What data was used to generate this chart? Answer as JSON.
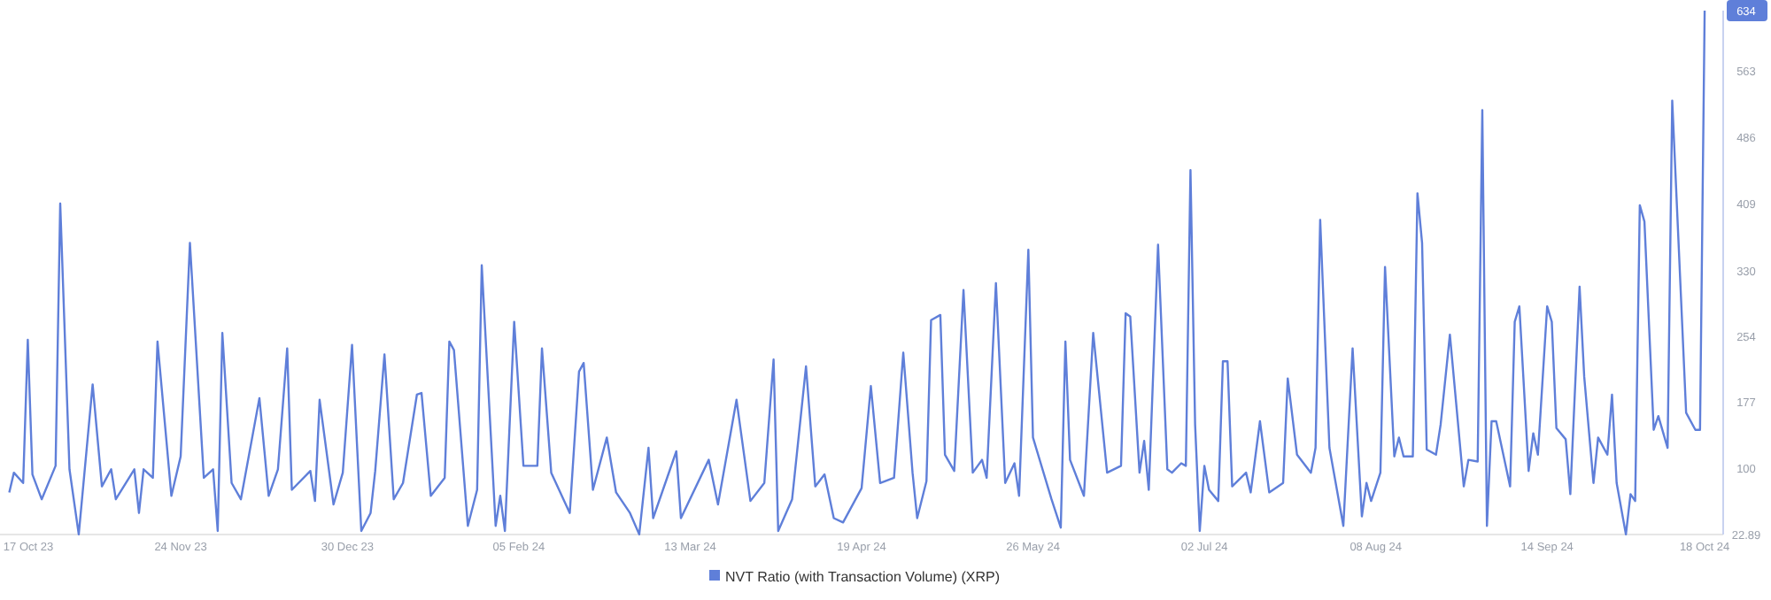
{
  "chart_data": {
    "type": "line",
    "legend": "bottom",
    "grid": false,
    "marker": "none",
    "line_style": "solid",
    "xlim": [
      "2023-10-16",
      "2024-10-22"
    ],
    "xticks": [
      {
        "value": "2023-10-17",
        "label": "17 Oct 23"
      },
      {
        "value": "2023-11-24",
        "label": "24 Nov 23"
      },
      {
        "value": "2023-12-30",
        "label": "30 Dec 23"
      },
      {
        "value": "2024-02-05",
        "label": "05 Feb 24"
      },
      {
        "value": "2024-03-13",
        "label": "13 Mar 24"
      },
      {
        "value": "2024-04-19",
        "label": "19 Apr 24"
      },
      {
        "value": "2024-05-26",
        "label": "26 May 24"
      },
      {
        "value": "2024-07-02",
        "label": "02 Jul 24"
      },
      {
        "value": "2024-08-08",
        "label": "08 Aug 24"
      },
      {
        "value": "2024-09-14",
        "label": "14 Sep 24"
      },
      {
        "value": "2024-10-18",
        "label": "18 Oct 24"
      }
    ],
    "ylim": [
      22.89,
      634
    ],
    "yticks": [
      22.89,
      100,
      177,
      254,
      330,
      409,
      486,
      563,
      634
    ],
    "series": [
      {
        "name": "NVT Ratio (with Transaction Volume) (XRP)",
        "color": "#5f7fd9",
        "x": [
          "2023-10-18",
          "2023-10-19",
          "2023-10-21",
          "2023-10-22",
          "2023-10-23",
          "2023-10-25",
          "2023-10-28",
          "2023-10-29",
          "2023-10-31",
          "2023-11-02",
          "2023-11-05",
          "2023-11-07",
          "2023-11-09",
          "2023-11-10",
          "2023-11-14",
          "2023-11-15",
          "2023-11-16",
          "2023-11-18",
          "2023-11-19",
          "2023-11-22",
          "2023-11-24",
          "2023-11-26",
          "2023-11-29",
          "2023-12-01",
          "2023-12-02",
          "2023-12-03",
          "2023-12-05",
          "2023-12-07",
          "2023-12-11",
          "2023-12-13",
          "2023-12-15",
          "2023-12-17",
          "2023-12-18",
          "2023-12-22",
          "2023-12-23",
          "2023-12-24",
          "2023-12-27",
          "2023-12-29",
          "2023-12-31",
          "2024-01-02",
          "2024-01-04",
          "2024-01-05",
          "2024-01-07",
          "2024-01-09",
          "2024-01-11",
          "2024-01-14",
          "2024-01-15",
          "2024-01-17",
          "2024-01-20",
          "2024-01-21",
          "2024-01-22",
          "2024-01-25",
          "2024-01-27",
          "2024-01-28",
          "2024-01-31",
          "2024-02-01",
          "2024-02-02",
          "2024-02-04",
          "2024-02-06",
          "2024-02-09",
          "2024-02-10",
          "2024-02-12",
          "2024-02-16",
          "2024-02-18",
          "2024-02-19",
          "2024-02-21",
          "2024-02-24",
          "2024-02-26",
          "2024-02-29",
          "2024-03-02",
          "2024-03-04",
          "2024-03-05",
          "2024-03-10",
          "2024-03-11",
          "2024-03-17",
          "2024-03-19",
          "2024-03-23",
          "2024-03-26",
          "2024-03-29",
          "2024-03-31",
          "2024-04-01",
          "2024-04-04",
          "2024-04-07",
          "2024-04-09",
          "2024-04-11",
          "2024-04-13",
          "2024-04-15",
          "2024-04-19",
          "2024-04-21",
          "2024-04-23",
          "2024-04-26",
          "2024-04-28",
          "2024-04-30",
          "2024-05-01",
          "2024-05-03",
          "2024-05-04",
          "2024-05-06",
          "2024-05-07",
          "2024-05-09",
          "2024-05-11",
          "2024-05-13",
          "2024-05-15",
          "2024-05-16",
          "2024-05-18",
          "2024-05-20",
          "2024-05-22",
          "2024-05-23",
          "2024-05-25",
          "2024-05-26",
          "2024-05-30",
          "2024-06-01",
          "2024-06-02",
          "2024-06-03",
          "2024-06-06",
          "2024-06-08",
          "2024-06-11",
          "2024-06-14",
          "2024-06-15",
          "2024-06-16",
          "2024-06-18",
          "2024-06-19",
          "2024-06-20",
          "2024-06-22",
          "2024-06-24",
          "2024-06-25",
          "2024-06-27",
          "2024-06-28",
          "2024-06-29",
          "2024-06-30",
          "2024-07-01",
          "2024-07-02",
          "2024-07-03",
          "2024-07-05",
          "2024-07-06",
          "2024-07-07",
          "2024-07-08",
          "2024-07-11",
          "2024-07-12",
          "2024-07-14",
          "2024-07-16",
          "2024-07-19",
          "2024-07-20",
          "2024-07-22",
          "2024-07-25",
          "2024-07-26",
          "2024-07-27",
          "2024-07-29",
          "2024-08-01",
          "2024-08-03",
          "2024-08-05",
          "2024-08-06",
          "2024-08-07",
          "2024-08-09",
          "2024-08-10",
          "2024-08-12",
          "2024-08-13",
          "2024-08-14",
          "2024-08-16",
          "2024-08-17",
          "2024-08-18",
          "2024-08-19",
          "2024-08-21",
          "2024-08-22",
          "2024-08-24",
          "2024-08-27",
          "2024-08-28",
          "2024-08-30",
          "2024-08-31",
          "2024-09-01",
          "2024-09-02",
          "2024-09-03",
          "2024-09-06",
          "2024-09-07",
          "2024-09-08",
          "2024-09-10",
          "2024-09-11",
          "2024-09-12",
          "2024-09-14",
          "2024-09-15",
          "2024-09-16",
          "2024-09-18",
          "2024-09-19",
          "2024-09-21",
          "2024-09-22",
          "2024-09-24",
          "2024-09-25",
          "2024-09-27",
          "2024-09-28",
          "2024-09-29",
          "2024-10-01",
          "2024-10-02",
          "2024-10-03",
          "2024-10-04",
          "2024-10-05",
          "2024-10-07",
          "2024-10-08",
          "2024-10-10",
          "2024-10-11",
          "2024-10-14",
          "2024-10-16",
          "2024-10-17",
          "2024-10-18"
        ],
        "values": [
          72,
          95,
          83,
          250,
          93,
          64,
          103,
          409,
          99,
          23,
          198,
          79,
          99,
          64,
          99,
          48,
          99,
          89,
          248,
          68,
          114,
          363,
          89,
          99,
          27,
          258,
          83,
          64,
          182,
          68,
          99,
          240,
          75,
          97,
          62,
          180,
          58,
          95,
          244,
          27,
          48,
          97,
          233,
          64,
          83,
          186,
          188,
          68,
          89,
          248,
          238,
          33,
          75,
          337,
          33,
          68,
          27,
          271,
          103,
          103,
          240,
          95,
          48,
          213,
          223,
          75,
          136,
          72,
          48,
          23,
          124,
          42,
          120,
          42,
          110,
          58,
          180,
          62,
          83,
          227,
          27,
          64,
          219,
          79,
          93,
          42,
          37,
          77,
          196,
          83,
          89,
          235,
          95,
          42,
          85,
          273,
          279,
          116,
          97,
          308,
          95,
          110,
          89,
          316,
          83,
          106,
          68,
          355,
          136,
          64,
          31,
          248,
          110,
          68,
          258,
          95,
          103,
          281,
          277,
          95,
          132,
          75,
          361,
          99,
          95,
          106,
          103,
          448,
          151,
          27,
          103,
          75,
          62,
          225,
          225,
          79,
          95,
          72,
          155,
          72,
          83,
          205,
          116,
          95,
          124,
          390,
          124,
          33,
          240,
          44,
          83,
          62,
          95,
          335,
          114,
          136,
          114,
          114,
          421,
          363,
          122,
          116,
          151,
          256,
          79,
          110,
          108,
          518,
          33,
          155,
          155,
          79,
          271,
          289,
          97,
          141,
          116,
          289,
          271,
          147,
          134,
          70,
          312,
          207,
          83,
          136,
          116,
          186,
          83,
          23,
          70,
          62,
          407,
          388,
          145,
          161,
          124,
          529,
          165,
          145,
          145,
          634
        ]
      }
    ]
  }
}
